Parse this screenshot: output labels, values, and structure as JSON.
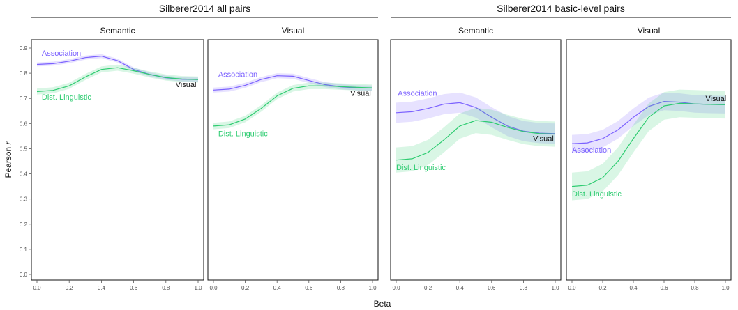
{
  "chart_data": {
    "type": "line",
    "xlabel": "Beta",
    "ylabel_prefix": "Pearson ",
    "ylabel_var": "r",
    "xlim": [
      0,
      1
    ],
    "ylim": [
      0,
      0.9
    ],
    "x_ticks": [
      "0.0",
      "0.2",
      "0.4",
      "0.6",
      "0.8",
      "1.0"
    ],
    "y_ticks": [
      "0.0",
      "0.1",
      "0.2",
      "0.3",
      "0.4",
      "0.5",
      "0.6",
      "0.7",
      "0.8",
      "0.9"
    ],
    "grid": false,
    "colors": {
      "association": "#7b61ff",
      "linguistic": "#2ecc71",
      "visual": "#111111"
    },
    "groups": [
      {
        "title": "Silberer2014 all pairs",
        "panels": [
          {
            "title": "Semantic",
            "series": [
              {
                "name": "Association",
                "color": "#7b61ff",
                "x": [
                  0,
                  0.1,
                  0.2,
                  0.3,
                  0.4,
                  0.5,
                  0.6,
                  0.7,
                  0.8,
                  0.9,
                  1.0
                ],
                "y": [
                  0.835,
                  0.838,
                  0.848,
                  0.862,
                  0.868,
                  0.85,
                  0.815,
                  0.795,
                  0.782,
                  0.776,
                  0.775
                ],
                "band": [
                  0.008,
                  0.008,
                  0.008,
                  0.008,
                  0.008,
                  0.008,
                  0.008,
                  0.008,
                  0.008,
                  0.008,
                  0.008
                ]
              },
              {
                "name": "Dist. Linguistic",
                "color": "#2ecc71",
                "x": [
                  0,
                  0.1,
                  0.2,
                  0.3,
                  0.4,
                  0.5,
                  0.6,
                  0.7,
                  0.8,
                  0.9,
                  1.0
                ],
                "y": [
                  0.727,
                  0.732,
                  0.75,
                  0.785,
                  0.815,
                  0.822,
                  0.81,
                  0.795,
                  0.783,
                  0.777,
                  0.775
                ],
                "band": [
                  0.012,
                  0.012,
                  0.012,
                  0.012,
                  0.012,
                  0.012,
                  0.012,
                  0.012,
                  0.012,
                  0.012,
                  0.012
                ]
              }
            ],
            "labels": [
              {
                "text": "Association",
                "series": "association",
                "x": 0.03,
                "y": 0.87
              },
              {
                "text": "Dist. Linguistic",
                "series": "linguistic",
                "x": 0.03,
                "y": 0.695
              },
              {
                "text": "Visual",
                "series": "visual",
                "x": 0.86,
                "y": 0.745
              }
            ]
          },
          {
            "title": "Visual",
            "series": [
              {
                "name": "Association",
                "color": "#7b61ff",
                "x": [
                  0,
                  0.1,
                  0.2,
                  0.3,
                  0.4,
                  0.5,
                  0.6,
                  0.7,
                  0.8,
                  0.9,
                  1.0
                ],
                "y": [
                  0.733,
                  0.737,
                  0.752,
                  0.775,
                  0.79,
                  0.788,
                  0.771,
                  0.755,
                  0.746,
                  0.742,
                  0.741
                ],
                "band": [
                  0.01,
                  0.01,
                  0.01,
                  0.01,
                  0.01,
                  0.01,
                  0.01,
                  0.01,
                  0.01,
                  0.01,
                  0.01
                ]
              },
              {
                "name": "Dist. Linguistic",
                "color": "#2ecc71",
                "x": [
                  0,
                  0.1,
                  0.2,
                  0.3,
                  0.4,
                  0.5,
                  0.6,
                  0.7,
                  0.8,
                  0.9,
                  1.0
                ],
                "y": [
                  0.59,
                  0.595,
                  0.618,
                  0.66,
                  0.71,
                  0.74,
                  0.75,
                  0.75,
                  0.747,
                  0.744,
                  0.742
                ],
                "band": [
                  0.013,
                  0.013,
                  0.013,
                  0.013,
                  0.013,
                  0.013,
                  0.013,
                  0.013,
                  0.013,
                  0.013,
                  0.013
                ]
              }
            ],
            "labels": [
              {
                "text": "Association",
                "series": "association",
                "x": 0.03,
                "y": 0.785
              },
              {
                "text": "Dist. Linguistic",
                "series": "linguistic",
                "x": 0.03,
                "y": 0.55
              },
              {
                "text": "Visual",
                "series": "visual",
                "x": 0.86,
                "y": 0.71
              }
            ]
          }
        ]
      },
      {
        "title": "Silberer2014 basic-level pairs",
        "panels": [
          {
            "title": "Semantic",
            "series": [
              {
                "name": "Association",
                "color": "#7b61ff",
                "x": [
                  0,
                  0.1,
                  0.2,
                  0.3,
                  0.4,
                  0.5,
                  0.6,
                  0.7,
                  0.8,
                  0.9,
                  1.0
                ],
                "y": [
                  0.643,
                  0.647,
                  0.66,
                  0.677,
                  0.683,
                  0.664,
                  0.625,
                  0.59,
                  0.57,
                  0.562,
                  0.56
                ],
                "band": [
                  0.04,
                  0.04,
                  0.04,
                  0.04,
                  0.04,
                  0.04,
                  0.04,
                  0.04,
                  0.04,
                  0.04,
                  0.04
                ]
              },
              {
                "name": "Dist. Linguistic",
                "color": "#2ecc71",
                "x": [
                  0,
                  0.1,
                  0.2,
                  0.3,
                  0.4,
                  0.5,
                  0.6,
                  0.7,
                  0.8,
                  0.9,
                  1.0
                ],
                "y": [
                  0.455,
                  0.46,
                  0.485,
                  0.535,
                  0.59,
                  0.612,
                  0.605,
                  0.585,
                  0.568,
                  0.56,
                  0.558
                ],
                "band": [
                  0.05,
                  0.05,
                  0.05,
                  0.05,
                  0.05,
                  0.05,
                  0.05,
                  0.05,
                  0.05,
                  0.05,
                  0.05
                ]
              }
            ],
            "labels": [
              {
                "text": "Association",
                "series": "association",
                "x": 0.01,
                "y": 0.71
              },
              {
                "text": "Dist. Linguistic",
                "series": "linguistic",
                "x": 0.0,
                "y": 0.415
              },
              {
                "text": "Visual",
                "series": "visual",
                "x": 0.86,
                "y": 0.53
              }
            ]
          },
          {
            "title": "Visual",
            "series": [
              {
                "name": "Association",
                "color": "#7b61ff",
                "x": [
                  0,
                  0.1,
                  0.2,
                  0.3,
                  0.4,
                  0.5,
                  0.6,
                  0.7,
                  0.8,
                  0.9,
                  1.0
                ],
                "y": [
                  0.52,
                  0.523,
                  0.54,
                  0.575,
                  0.625,
                  0.668,
                  0.688,
                  0.685,
                  0.678,
                  0.676,
                  0.675
                ],
                "band": [
                  0.035,
                  0.035,
                  0.035,
                  0.035,
                  0.035,
                  0.035,
                  0.035,
                  0.035,
                  0.035,
                  0.035,
                  0.035
                ]
              },
              {
                "name": "Dist. Linguistic",
                "color": "#2ecc71",
                "x": [
                  0,
                  0.1,
                  0.2,
                  0.3,
                  0.4,
                  0.5,
                  0.6,
                  0.7,
                  0.8,
                  0.9,
                  1.0
                ],
                "y": [
                  0.35,
                  0.355,
                  0.385,
                  0.45,
                  0.54,
                  0.625,
                  0.67,
                  0.68,
                  0.678,
                  0.676,
                  0.675
                ],
                "band": [
                  0.055,
                  0.055,
                  0.055,
                  0.055,
                  0.055,
                  0.055,
                  0.055,
                  0.055,
                  0.055,
                  0.055,
                  0.055
                ]
              }
            ],
            "labels": [
              {
                "text": "Association",
                "series": "association",
                "x": 0.0,
                "y": 0.485
              },
              {
                "text": "Dist. Linguistic",
                "series": "linguistic",
                "x": 0.0,
                "y": 0.31
              },
              {
                "text": "Visual",
                "series": "visual",
                "x": 0.87,
                "y": 0.69
              }
            ]
          }
        ]
      }
    ]
  }
}
